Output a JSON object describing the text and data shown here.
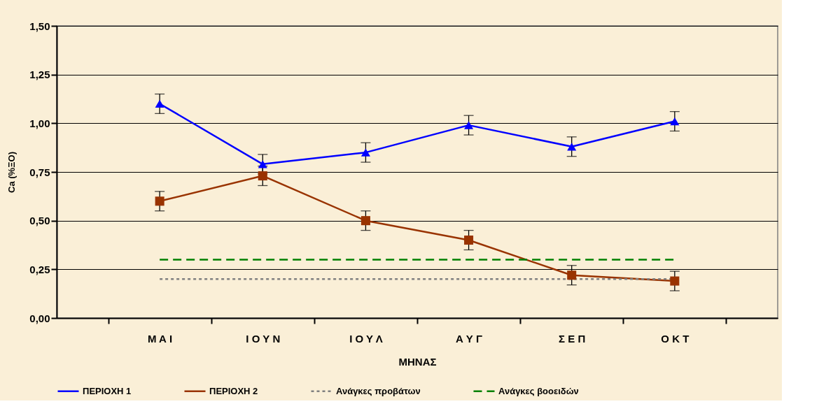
{
  "chart_data": {
    "type": "line",
    "xlabel": "ΜΗΝΑΣ",
    "ylabel": "Ca (%ΞΟ)",
    "categories": [
      "Μ Α Ι",
      "Ι Ο Υ Ν",
      "Ι Ο Υ Λ",
      "Α Υ Γ",
      "Σ Ε Π",
      "Ο Κ Τ"
    ],
    "series": [
      {
        "name": "ΠΕΡΙΟΧΗ 1",
        "color": "#0000ff",
        "marker": "triangle",
        "line_style": "solid",
        "values": [
          1.1,
          0.79,
          0.85,
          0.99,
          0.88,
          1.01
        ],
        "errors": [
          0.05,
          0.05,
          0.05,
          0.05,
          0.05,
          0.05
        ]
      },
      {
        "name": "ΠΕΡΙΟΧΗ 2",
        "color": "#993300",
        "marker": "square",
        "line_style": "solid",
        "values": [
          0.6,
          0.73,
          0.5,
          0.4,
          0.22,
          0.19
        ],
        "errors": [
          0.05,
          0.05,
          0.05,
          0.05,
          0.05,
          0.05
        ]
      },
      {
        "name": "Ανάγκες προβάτων",
        "color": "#808080",
        "marker": "none",
        "line_style": "dotted",
        "values": [
          0.2,
          0.2,
          0.2,
          0.2,
          0.2,
          0.2
        ]
      },
      {
        "name": "Ανάγκες βοοειδών",
        "color": "#008000",
        "marker": "none",
        "line_style": "dashed",
        "values": [
          0.3,
          0.3,
          0.3,
          0.3,
          0.3,
          0.3
        ]
      }
    ],
    "ylim": [
      0,
      1.5
    ],
    "yticks": [
      {
        "value": 0,
        "label": "0,00"
      },
      {
        "value": 0.25,
        "label": "0,25"
      },
      {
        "value": 0.5,
        "label": "0,50"
      },
      {
        "value": 0.75,
        "label": "0,75"
      },
      {
        "value": 1.0,
        "label": "1,00"
      },
      {
        "value": 1.25,
        "label": "1,25"
      },
      {
        "value": 1.5,
        "label": "1,50"
      }
    ],
    "grid": "y",
    "legend": "bottom"
  }
}
